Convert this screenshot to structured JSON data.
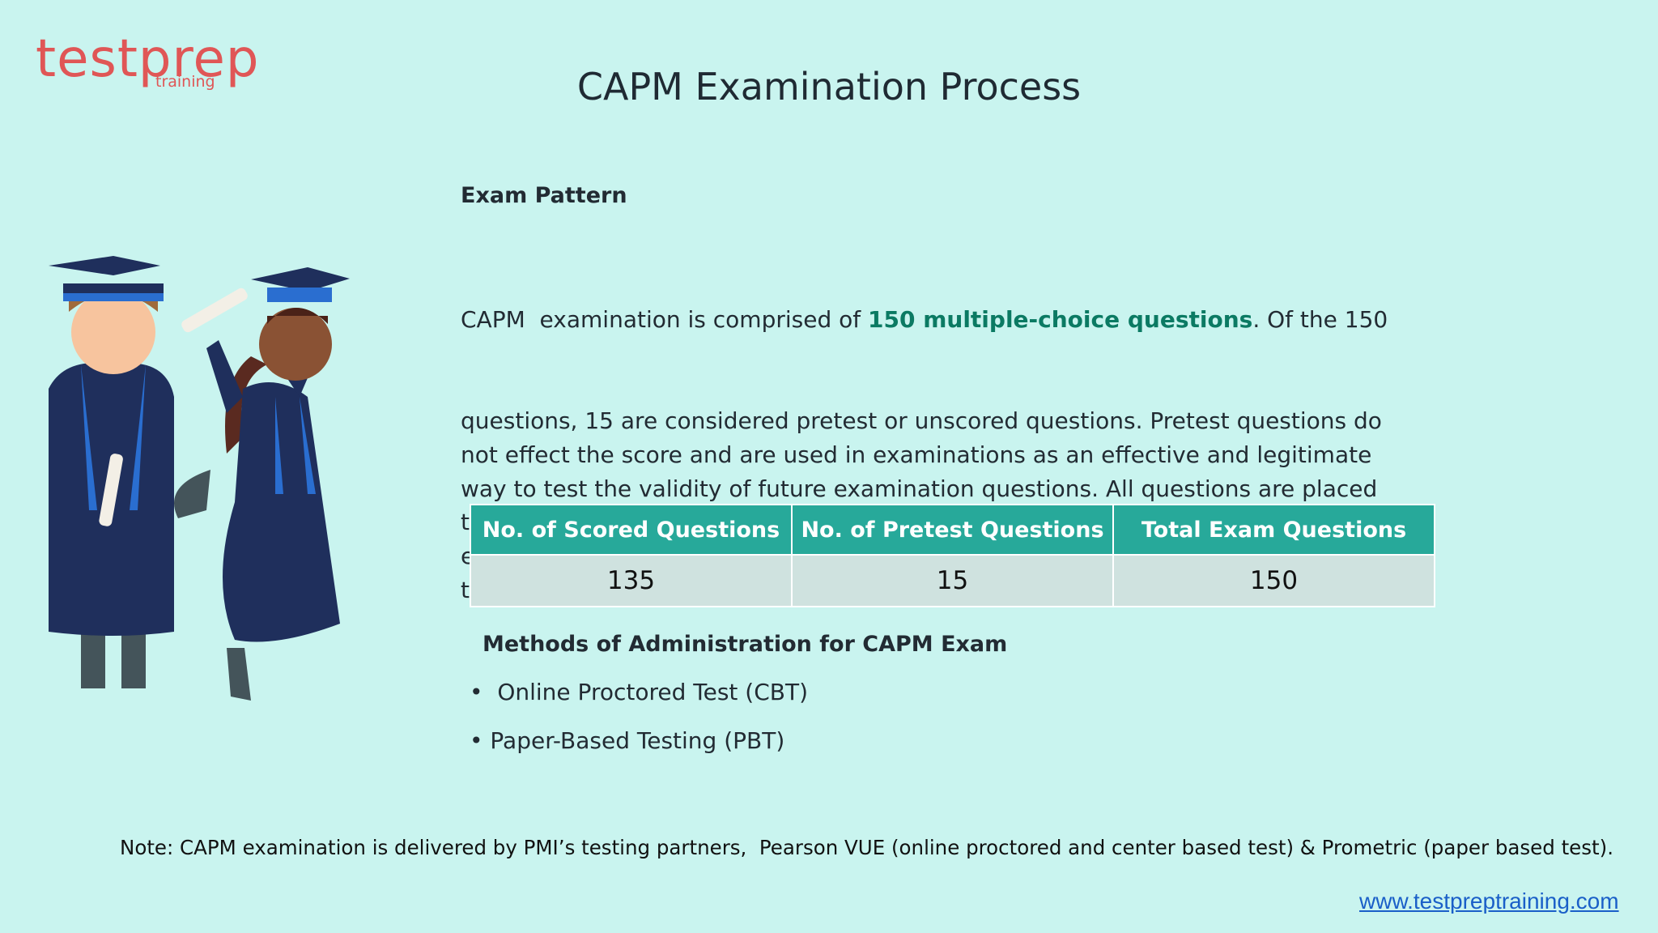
{
  "logo": {
    "main": "testprep",
    "sub": "training"
  },
  "title": "CAPM Examination Process",
  "section_heading": "Exam Pattern",
  "paragraph": {
    "first_line": [
      "CAPM  examination is comprised of ",
      "150 multiple-choice questions",
      ". Of the 150"
    ],
    "lines": [
      "questions, 15 are considered pretest or unscored questions. Pretest questions do",
      "not effect the score and are used in examinations as an effective and legitimate",
      "way to test the validity of future examination questions. All questions are placed",
      "throughout the examination randomly. The allotted time to complete the CAPM",
      "examination is",
      "three hours."
    ]
  },
  "table": {
    "headers": [
      "No. of Scored Questions",
      "No. of Pretest Questions",
      "Total Exam Questions"
    ],
    "rows": [
      [
        135,
        15,
        150
      ]
    ]
  },
  "methods_heading": "Methods of Administration for CAPM Exam",
  "bullets": [
    "Online Proctored Test (CBT)",
    "Paper-Based Testing (PBT)"
  ],
  "note": "Note: CAPM examination is delivered by PMI’s testing partners,  Pearson VUE (online proctored and center based test) & Prometric (paper based test).",
  "url": "www.testpreptraining.com"
}
